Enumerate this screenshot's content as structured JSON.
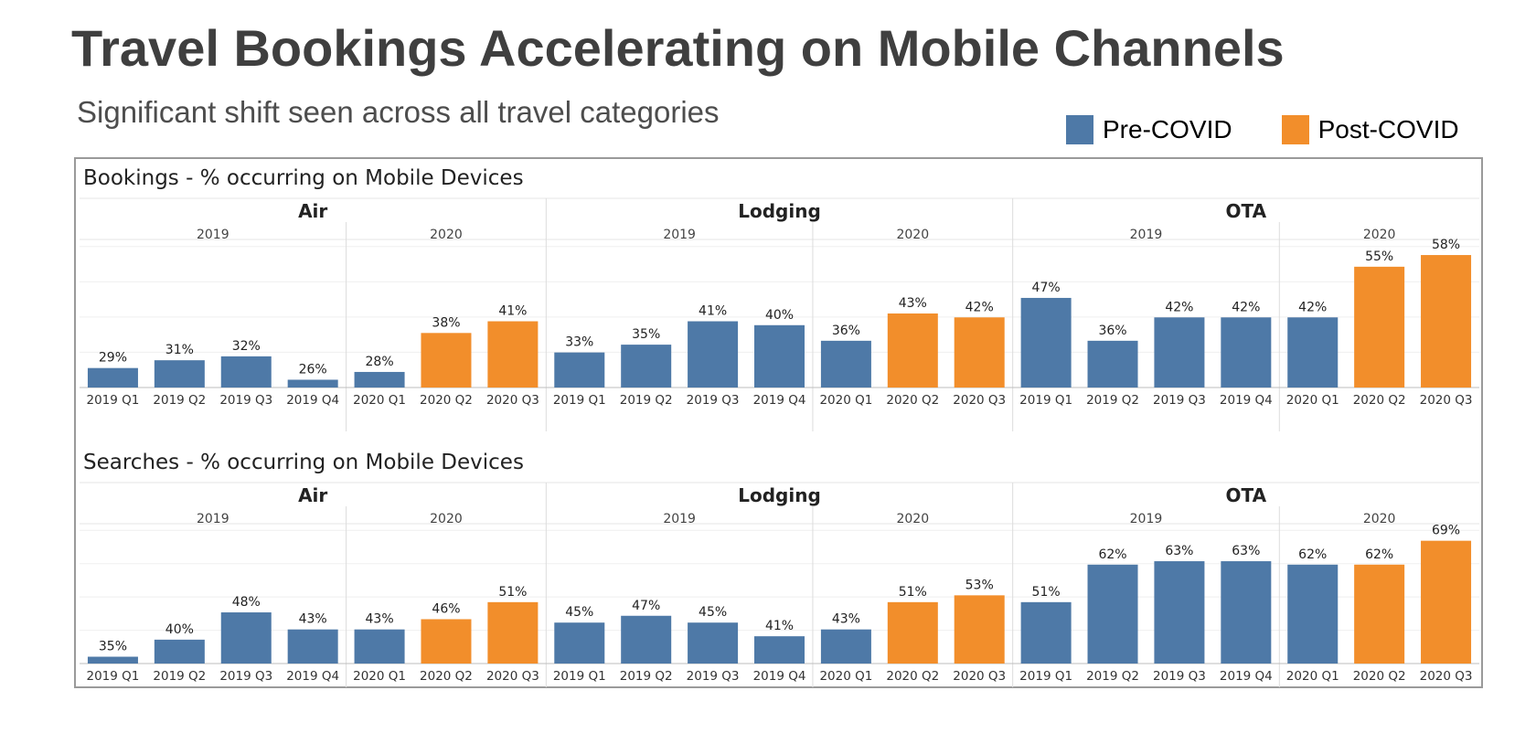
{
  "header": {
    "title": "Travel Bookings Accelerating on Mobile Channels",
    "subtitle": "Significant shift seen across all travel categories"
  },
  "legend": [
    {
      "label": "Pre-COVID",
      "color": "#4e79a7"
    },
    {
      "label": "Post-COVID",
      "color": "#f28e2b"
    }
  ],
  "colors": {
    "pre": "#4e79a7",
    "post": "#f28e2b"
  },
  "chart_data": [
    {
      "type": "bar",
      "title": "Bookings - % occurring on Mobile Devices",
      "groups": [
        {
          "name": "Air",
          "years": [
            {
              "year": "2019",
              "count": 4
            },
            {
              "year": "2020",
              "count": 3
            }
          ]
        },
        {
          "name": "Lodging",
          "years": [
            {
              "year": "2019",
              "count": 4
            },
            {
              "year": "2020",
              "count": 3
            }
          ]
        },
        {
          "name": "OTA",
          "years": [
            {
              "year": "2019",
              "count": 4
            },
            {
              "year": "2020",
              "count": 3
            }
          ]
        }
      ],
      "categories": [
        "2019 Q1",
        "2019 Q2",
        "2019 Q3",
        "2019 Q4",
        "2020 Q1",
        "2020 Q2",
        "2020 Q3",
        "2019 Q1",
        "2019 Q2",
        "2019 Q3",
        "2019 Q4",
        "2020 Q1",
        "2020 Q2",
        "2020 Q3",
        "2019 Q1",
        "2019 Q2",
        "2019 Q3",
        "2019 Q4",
        "2020 Q1",
        "2020 Q2",
        "2020 Q3"
      ],
      "values": [
        29,
        31,
        32,
        26,
        28,
        38,
        41,
        33,
        35,
        41,
        40,
        36,
        43,
        42,
        47,
        36,
        42,
        42,
        42,
        55,
        58
      ],
      "period": [
        "pre",
        "pre",
        "pre",
        "pre",
        "pre",
        "post",
        "post",
        "pre",
        "pre",
        "pre",
        "pre",
        "pre",
        "post",
        "post",
        "pre",
        "pre",
        "pre",
        "pre",
        "pre",
        "post",
        "post"
      ],
      "value_labels": [
        "29%",
        "31%",
        "32%",
        "26%",
        "28%",
        "38%",
        "41%",
        "33%",
        "35%",
        "41%",
        "40%",
        "36%",
        "43%",
        "42%",
        "47%",
        "36%",
        "42%",
        "42%",
        "42%",
        "55%",
        "58%"
      ],
      "ylim": [
        24,
        62
      ]
    },
    {
      "type": "bar",
      "title": "Searches - % occurring on Mobile Devices",
      "groups": [
        {
          "name": "Air",
          "years": [
            {
              "year": "2019",
              "count": 4
            },
            {
              "year": "2020",
              "count": 3
            }
          ]
        },
        {
          "name": "Lodging",
          "years": [
            {
              "year": "2019",
              "count": 4
            },
            {
              "year": "2020",
              "count": 3
            }
          ]
        },
        {
          "name": "OTA",
          "years": [
            {
              "year": "2019",
              "count": 4
            },
            {
              "year": "2020",
              "count": 3
            }
          ]
        }
      ],
      "categories": [
        "2019 Q1",
        "2019 Q2",
        "2019 Q3",
        "2019 Q4",
        "2020 Q1",
        "2020 Q2",
        "2020 Q3",
        "2019 Q1",
        "2019 Q2",
        "2019 Q3",
        "2019 Q4",
        "2020 Q1",
        "2020 Q2",
        "2020 Q3",
        "2019 Q1",
        "2019 Q2",
        "2019 Q3",
        "2019 Q4",
        "2020 Q1",
        "2020 Q2",
        "2020 Q3"
      ],
      "values": [
        35,
        40,
        48,
        43,
        43,
        46,
        51,
        45,
        47,
        45,
        41,
        43,
        51,
        53,
        51,
        62,
        63,
        63,
        62,
        62,
        69
      ],
      "period": [
        "pre",
        "pre",
        "pre",
        "pre",
        "pre",
        "post",
        "post",
        "pre",
        "pre",
        "pre",
        "pre",
        "pre",
        "post",
        "post",
        "pre",
        "pre",
        "pre",
        "pre",
        "pre",
        "post",
        "post"
      ],
      "value_labels": [
        "35%",
        "40%",
        "48%",
        "43%",
        "43%",
        "46%",
        "51%",
        "45%",
        "47%",
        "45%",
        "41%",
        "43%",
        "51%",
        "53%",
        "51%",
        "62%",
        "63%",
        "63%",
        "62%",
        "62%",
        "69%"
      ],
      "ylim": [
        33,
        74
      ]
    }
  ]
}
